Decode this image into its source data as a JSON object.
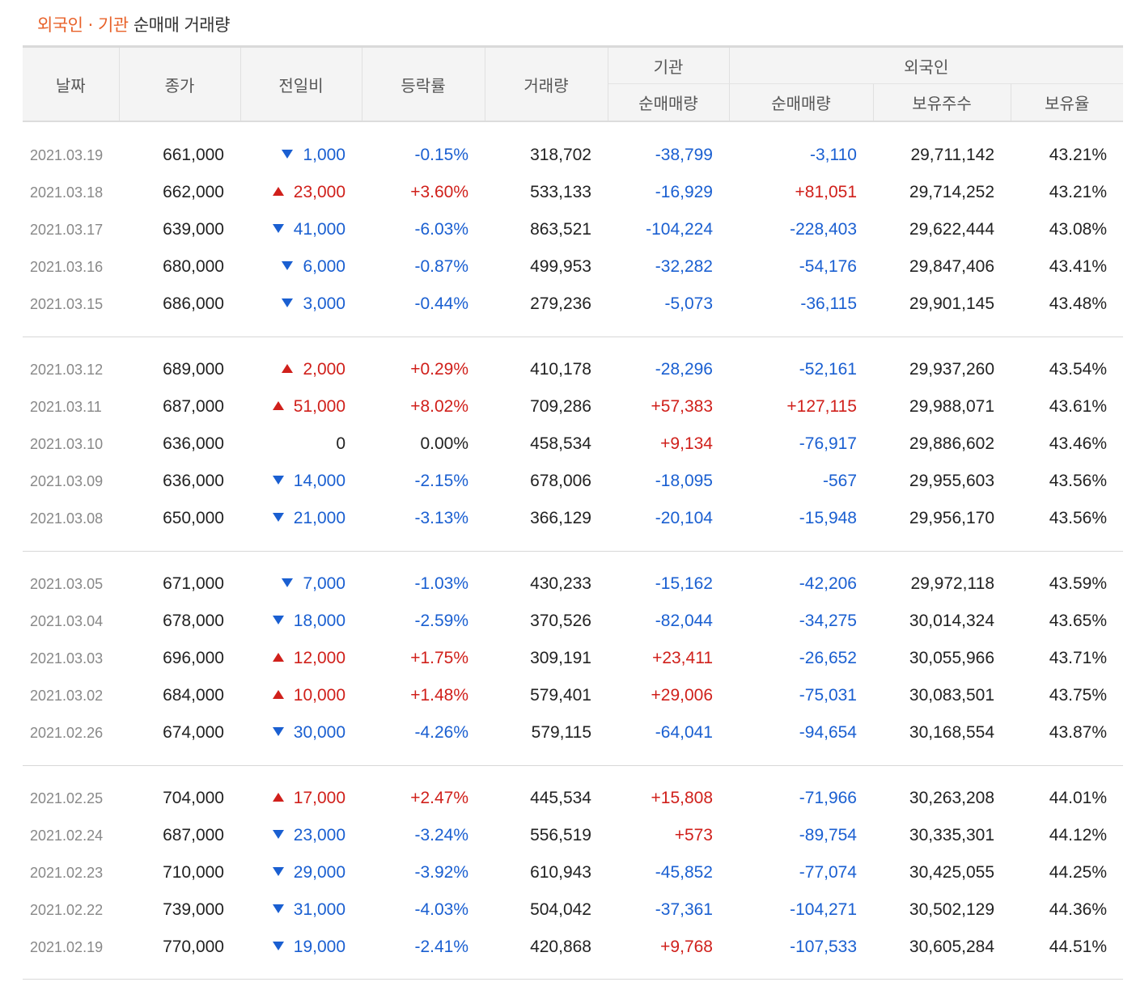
{
  "title": {
    "highlight": "외국인 · 기관",
    "rest": "순매매 거래량"
  },
  "headers": {
    "date": "날짜",
    "close": "종가",
    "change": "전일비",
    "rate": "등락률",
    "volume": "거래량",
    "institution": "기관",
    "foreign": "외국인",
    "inst_net": "순매매량",
    "foreign_net": "순매매량",
    "holdings": "보유주수",
    "holding_ratio": "보유율"
  },
  "colors": {
    "up": "#d0201b",
    "down": "#1a5fd1",
    "accent": "#e8622a"
  },
  "rows": [
    {
      "date": "2021.03.19",
      "close": "661,000",
      "change": "1,000",
      "dir": "down",
      "rate": "-0.15%",
      "volume": "318,702",
      "inst": "-38,799",
      "foreign": "-3,110",
      "holdings": "29,711,142",
      "ratio": "43.21%"
    },
    {
      "date": "2021.03.18",
      "close": "662,000",
      "change": "23,000",
      "dir": "up",
      "rate": "+3.60%",
      "volume": "533,133",
      "inst": "-16,929",
      "foreign": "+81,051",
      "holdings": "29,714,252",
      "ratio": "43.21%"
    },
    {
      "date": "2021.03.17",
      "close": "639,000",
      "change": "41,000",
      "dir": "down",
      "rate": "-6.03%",
      "volume": "863,521",
      "inst": "-104,224",
      "foreign": "-228,403",
      "holdings": "29,622,444",
      "ratio": "43.08%"
    },
    {
      "date": "2021.03.16",
      "close": "680,000",
      "change": "6,000",
      "dir": "down",
      "rate": "-0.87%",
      "volume": "499,953",
      "inst": "-32,282",
      "foreign": "-54,176",
      "holdings": "29,847,406",
      "ratio": "43.41%"
    },
    {
      "date": "2021.03.15",
      "close": "686,000",
      "change": "3,000",
      "dir": "down",
      "rate": "-0.44%",
      "volume": "279,236",
      "inst": "-5,073",
      "foreign": "-36,115",
      "holdings": "29,901,145",
      "ratio": "43.48%"
    },
    {
      "date": "2021.03.12",
      "close": "689,000",
      "change": "2,000",
      "dir": "up",
      "rate": "+0.29%",
      "volume": "410,178",
      "inst": "-28,296",
      "foreign": "-52,161",
      "holdings": "29,937,260",
      "ratio": "43.54%"
    },
    {
      "date": "2021.03.11",
      "close": "687,000",
      "change": "51,000",
      "dir": "up",
      "rate": "+8.02%",
      "volume": "709,286",
      "inst": "+57,383",
      "foreign": "+127,115",
      "holdings": "29,988,071",
      "ratio": "43.61%"
    },
    {
      "date": "2021.03.10",
      "close": "636,000",
      "change": "0",
      "dir": "none",
      "rate": "0.00%",
      "volume": "458,534",
      "inst": "+9,134",
      "foreign": "-76,917",
      "holdings": "29,886,602",
      "ratio": "43.46%"
    },
    {
      "date": "2021.03.09",
      "close": "636,000",
      "change": "14,000",
      "dir": "down",
      "rate": "-2.15%",
      "volume": "678,006",
      "inst": "-18,095",
      "foreign": "-567",
      "holdings": "29,955,603",
      "ratio": "43.56%"
    },
    {
      "date": "2021.03.08",
      "close": "650,000",
      "change": "21,000",
      "dir": "down",
      "rate": "-3.13%",
      "volume": "366,129",
      "inst": "-20,104",
      "foreign": "-15,948",
      "holdings": "29,956,170",
      "ratio": "43.56%"
    },
    {
      "date": "2021.03.05",
      "close": "671,000",
      "change": "7,000",
      "dir": "down",
      "rate": "-1.03%",
      "volume": "430,233",
      "inst": "-15,162",
      "foreign": "-42,206",
      "holdings": "29,972,118",
      "ratio": "43.59%"
    },
    {
      "date": "2021.03.04",
      "close": "678,000",
      "change": "18,000",
      "dir": "down",
      "rate": "-2.59%",
      "volume": "370,526",
      "inst": "-82,044",
      "foreign": "-34,275",
      "holdings": "30,014,324",
      "ratio": "43.65%"
    },
    {
      "date": "2021.03.03",
      "close": "696,000",
      "change": "12,000",
      "dir": "up",
      "rate": "+1.75%",
      "volume": "309,191",
      "inst": "+23,411",
      "foreign": "-26,652",
      "holdings": "30,055,966",
      "ratio": "43.71%"
    },
    {
      "date": "2021.03.02",
      "close": "684,000",
      "change": "10,000",
      "dir": "up",
      "rate": "+1.48%",
      "volume": "579,401",
      "inst": "+29,006",
      "foreign": "-75,031",
      "holdings": "30,083,501",
      "ratio": "43.75%"
    },
    {
      "date": "2021.02.26",
      "close": "674,000",
      "change": "30,000",
      "dir": "down",
      "rate": "-4.26%",
      "volume": "579,115",
      "inst": "-64,041",
      "foreign": "-94,654",
      "holdings": "30,168,554",
      "ratio": "43.87%"
    },
    {
      "date": "2021.02.25",
      "close": "704,000",
      "change": "17,000",
      "dir": "up",
      "rate": "+2.47%",
      "volume": "445,534",
      "inst": "+15,808",
      "foreign": "-71,966",
      "holdings": "30,263,208",
      "ratio": "44.01%"
    },
    {
      "date": "2021.02.24",
      "close": "687,000",
      "change": "23,000",
      "dir": "down",
      "rate": "-3.24%",
      "volume": "556,519",
      "inst": "+573",
      "foreign": "-89,754",
      "holdings": "30,335,301",
      "ratio": "44.12%"
    },
    {
      "date": "2021.02.23",
      "close": "710,000",
      "change": "29,000",
      "dir": "down",
      "rate": "-3.92%",
      "volume": "610,943",
      "inst": "-45,852",
      "foreign": "-77,074",
      "holdings": "30,425,055",
      "ratio": "44.25%"
    },
    {
      "date": "2021.02.22",
      "close": "739,000",
      "change": "31,000",
      "dir": "down",
      "rate": "-4.03%",
      "volume": "504,042",
      "inst": "-37,361",
      "foreign": "-104,271",
      "holdings": "30,502,129",
      "ratio": "44.36%"
    },
    {
      "date": "2021.02.19",
      "close": "770,000",
      "change": "19,000",
      "dir": "down",
      "rate": "-2.41%",
      "volume": "420,868",
      "inst": "+9,768",
      "foreign": "-107,533",
      "holdings": "30,605,284",
      "ratio": "44.51%"
    }
  ]
}
